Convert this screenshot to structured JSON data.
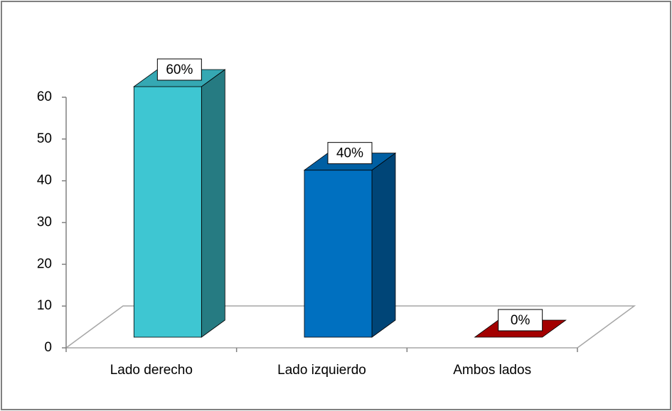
{
  "chart_data": {
    "type": "bar3d",
    "categories": [
      "Lado derecho",
      "Lado izquierdo",
      "Ambos lados"
    ],
    "values": [
      60,
      40,
      0
    ],
    "value_labels": [
      "60%",
      "40%",
      "0%"
    ],
    "colors": [
      "#3ec6d2",
      "#0070c0",
      "#c00000"
    ],
    "ylim": [
      0,
      60
    ],
    "yticks": [
      0,
      10,
      20,
      30,
      40,
      50,
      60
    ]
  }
}
